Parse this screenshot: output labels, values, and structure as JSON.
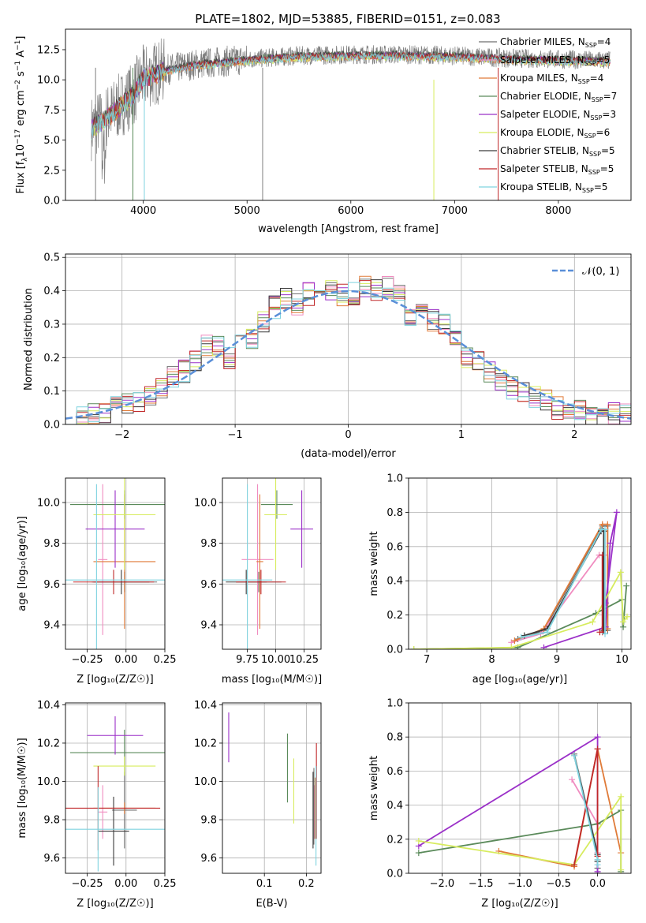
{
  "figure_title": "PLATE=1802, MJD=53885, FIBERID=0151, z=0.083",
  "colors": {
    "Chabrier MILES": "#6f6f6f",
    "Salpeter MILES": "#f08cc0",
    "Kroupa MILES": "#e07b39",
    "Chabrier ELODIE": "#5a8a5a",
    "Salpeter ELODIE": "#9b30c8",
    "Kroupa ELODIE": "#d7ec5e",
    "Chabrier STELIB": "#3a3a3a",
    "Salpeter STELIB": "#c0282a",
    "Kroupa STELIB": "#7fd3df",
    "normal": "#5a8fd8"
  },
  "chart_data": [
    {
      "id": "spectrum",
      "type": "line",
      "title": "PLATE=1802, MJD=53885, FIBERID=0151, z=0.083",
      "xlabel": "wavelength [Angstrom, rest frame]",
      "ylabel_main": "Flux [f",
      "ylabel_sub1": "λ",
      "ylabel_mid": "10",
      "ylabel_sup1": "−17",
      "ylabel_tail": " erg cm",
      "ylabel_sup2": "−2",
      "ylabel_tail2": " s",
      "ylabel_sup3": "−1",
      "ylabel_tail3": " A",
      "ylabel_sup4": "−1",
      "ylabel_end": "]",
      "xlim": [
        3250,
        8700
      ],
      "ylim": [
        0,
        14.2
      ],
      "xticks": [
        "4000",
        "5000",
        "6000",
        "7000",
        "8000"
      ],
      "yticks": [
        "0.0",
        "2.5",
        "5.0",
        "7.5",
        "10.0",
        "12.5"
      ],
      "legend_position": "upper-right",
      "legend": [
        {
          "name": "Chabrier MILES",
          "n": "4"
        },
        {
          "name": "Salpeter MILES",
          "n": "5"
        },
        {
          "name": "Kroupa MILES",
          "n": "4"
        },
        {
          "name": "Chabrier ELODIE",
          "n": "7"
        },
        {
          "name": "Salpeter ELODIE",
          "n": "3"
        },
        {
          "name": "Kroupa ELODIE",
          "n": "6"
        },
        {
          "name": "Chabrier STELIB",
          "n": "5"
        },
        {
          "name": "Salpeter STELIB",
          "n": "5"
        },
        {
          "name": "Kroupa STELIB",
          "n": "5"
        }
      ],
      "legend_sub": "SSP",
      "continuum": {
        "x": [
          3500,
          3700,
          3900,
          4000,
          4200,
          4500,
          5000,
          5500,
          6000,
          6500,
          7000,
          7500,
          8000,
          8500
        ],
        "y": [
          6.0,
          7.3,
          8.8,
          10.2,
          10.8,
          11.3,
          11.7,
          12.0,
          12.1,
          12.1,
          12.0,
          11.8,
          11.7,
          11.6
        ]
      }
    },
    {
      "id": "residuals",
      "type": "histogram",
      "xlabel": "(data-model)/error",
      "ylabel": "Normed distribution",
      "xlim": [
        -2.5,
        2.5
      ],
      "ylim": [
        0,
        0.51
      ],
      "xticks": [
        "−2",
        "−1",
        "0",
        "1",
        "2"
      ],
      "yticks": [
        "0.0",
        "0.1",
        "0.2",
        "0.3",
        "0.4",
        "0.5"
      ],
      "legend": "𝒩(0, 1)",
      "bin_width": 0.1,
      "bin_start": -2.5,
      "heights": [
        0.01,
        0.02,
        0.03,
        0.04,
        0.05,
        0.06,
        0.07,
        0.09,
        0.11,
        0.14,
        0.16,
        0.19,
        0.24,
        0.24,
        0.2,
        0.27,
        0.26,
        0.31,
        0.35,
        0.38,
        0.36,
        0.39,
        0.41,
        0.4,
        0.39,
        0.39,
        0.41,
        0.4,
        0.41,
        0.4,
        0.33,
        0.35,
        0.31,
        0.3,
        0.25,
        0.2,
        0.19,
        0.16,
        0.13,
        0.11,
        0.1,
        0.08,
        0.07,
        0.05,
        0.04,
        0.04,
        0.03,
        0.03,
        0.03,
        0.03
      ]
    },
    {
      "id": "age-vs-Z",
      "type": "errorbar",
      "xlabel": "Z [log₁₀(Z/Z☉)]",
      "ylabel": "age  [log₁₀(age/yr)]",
      "xlim": [
        -0.39,
        0.25
      ],
      "ylim": [
        9.28,
        10.12
      ],
      "xticks": [
        "−0.25",
        "0.00",
        "0.25"
      ],
      "yticks": [
        "9.4",
        "9.6",
        "9.8",
        "10.0"
      ],
      "points": [
        {
          "s": "Chabrier MILES",
          "x": -0.01,
          "xe": 0.21,
          "y": 9.61,
          "ye": 0.05
        },
        {
          "s": "Salpeter MILES",
          "x": -0.15,
          "xe": 0.03,
          "y": 9.72,
          "ye": 0.37
        },
        {
          "s": "Kroupa MILES",
          "x": -0.01,
          "xe": 0.2,
          "y": 9.71,
          "ye": 0.33
        },
        {
          "s": "Chabrier ELODIE",
          "x": -0.01,
          "xe": 0.35,
          "y": 9.99,
          "ye": 0.07
        },
        {
          "s": "Salpeter ELODIE",
          "x": -0.07,
          "xe": 0.19,
          "y": 9.87,
          "ye": 0.19
        },
        {
          "s": "Kroupa ELODIE",
          "x": -0.01,
          "xe": 0.2,
          "y": 9.94,
          "ye": 0.27
        },
        {
          "s": "Chabrier STELIB",
          "x": -0.03,
          "xe": 0.18,
          "y": 9.61,
          "ye": 0.06
        },
        {
          "s": "Salpeter STELIB",
          "x": -0.08,
          "xe": 0.26,
          "y": 9.61,
          "ye": 0.06
        },
        {
          "s": "Kroupa STELIB",
          "x": -0.19,
          "xe": 0.44,
          "y": 9.62,
          "ye": 0.47
        }
      ]
    },
    {
      "id": "age-vs-mass",
      "type": "errorbar",
      "xlabel": "mass [log₁₀(M/M☉)]",
      "xlim": [
        9.53,
        10.4
      ],
      "ylim": [
        9.28,
        10.12
      ],
      "xticks": [
        "9.75",
        "10.00",
        "10.25"
      ],
      "yticks": [
        "9.4",
        "9.6",
        "9.8",
        "10.0"
      ],
      "points": [
        {
          "s": "Chabrier MILES",
          "x": 9.85,
          "xe": 0.2,
          "y": 9.61,
          "ye": 0.05
        },
        {
          "s": "Salpeter MILES",
          "x": 9.84,
          "xe": 0.14,
          "y": 9.72,
          "ye": 0.37
        },
        {
          "s": "Kroupa MILES",
          "x": 9.86,
          "xe": 0.03,
          "y": 9.71,
          "ye": 0.33
        },
        {
          "s": "Chabrier ELODIE",
          "x": 10.01,
          "xe": 0.14,
          "y": 9.99,
          "ye": 0.07
        },
        {
          "s": "Salpeter ELODIE",
          "x": 10.23,
          "xe": 0.1,
          "y": 9.87,
          "ye": 0.19
        },
        {
          "s": "Kroupa ELODIE",
          "x": 10.0,
          "xe": 0.1,
          "y": 9.94,
          "ye": 0.27
        },
        {
          "s": "Chabrier STELIB",
          "x": 9.74,
          "xe": 0.18,
          "y": 9.61,
          "ye": 0.06
        },
        {
          "s": "Salpeter STELIB",
          "x": 9.87,
          "xe": 0.22,
          "y": 9.61,
          "ye": 0.06
        },
        {
          "s": "Kroupa STELIB",
          "x": 9.75,
          "xe": 0.22,
          "y": 9.62,
          "ye": 0.47
        }
      ]
    },
    {
      "id": "weight-vs-age",
      "type": "line",
      "xlabel": "age  [log₁₀(age/yr)]",
      "ylabel": "mass weight",
      "xlim": [
        6.72,
        10.14
      ],
      "ylim": [
        0,
        1.0
      ],
      "xticks": [
        "7",
        "8",
        "9",
        "10"
      ],
      "yticks": [
        "0.0",
        "0.2",
        "0.4",
        "0.6",
        "0.8",
        "1.0"
      ],
      "series": [
        {
          "s": "Chabrier MILES",
          "x": [
            8.4,
            8.8,
            9.7,
            9.78,
            9.78
          ],
          "y": [
            0.06,
            0.11,
            0.72,
            0.72,
            0.11
          ]
        },
        {
          "s": "Salpeter MILES",
          "x": [
            8.3,
            8.75,
            9.65,
            9.73,
            9.73
          ],
          "y": [
            0.04,
            0.09,
            0.55,
            0.55,
            0.13
          ]
        },
        {
          "s": "Kroupa MILES",
          "x": [
            8.35,
            8.8,
            9.7,
            9.78,
            9.78
          ],
          "y": [
            0.05,
            0.12,
            0.73,
            0.73,
            0.12
          ]
        },
        {
          "s": "Chabrier ELODIE",
          "x": [
            6.8,
            8.4,
            9.6,
            10.0,
            10.02,
            10.07
          ],
          "y": [
            0.0,
            0.01,
            0.21,
            0.29,
            0.13,
            0.37
          ]
        },
        {
          "s": "Salpeter ELODIE",
          "x": [
            8.8,
            9.75,
            9.82,
            9.92,
            9.75
          ],
          "y": [
            0.01,
            0.13,
            0.62,
            0.8,
            0.27
          ]
        },
        {
          "s": "Kroupa ELODIE",
          "x": [
            6.8,
            8.3,
            9.55,
            9.98,
            10.02,
            10.08
          ],
          "y": [
            0.0,
            0.01,
            0.16,
            0.45,
            0.16,
            0.19
          ]
        },
        {
          "s": "Chabrier STELIB",
          "x": [
            8.5,
            8.85,
            9.68,
            9.72,
            9.72
          ],
          "y": [
            0.08,
            0.12,
            0.69,
            0.69,
            0.11
          ]
        },
        {
          "s": "Salpeter STELIB",
          "x": [
            9.66,
            9.7,
            9.7
          ],
          "y": [
            0.1,
            0.1,
            0.55
          ]
        },
        {
          "s": "Kroupa STELIB",
          "x": [
            8.45,
            8.85,
            9.68,
            9.74,
            9.74
          ],
          "y": [
            0.07,
            0.1,
            0.7,
            0.7,
            0.09
          ]
        }
      ]
    },
    {
      "id": "mass-vs-Z",
      "type": "errorbar",
      "xlabel": "Z [log₁₀(Z/Z☉)]",
      "ylabel": "mass [log₁₀(M/M☉)]",
      "xlim": [
        -0.39,
        0.25
      ],
      "ylim": [
        9.52,
        10.41
      ],
      "xticks": [
        "−0.25",
        "0.00",
        "0.25"
      ],
      "yticks": [
        "9.6",
        "9.8",
        "10.0",
        "10.2",
        "10.4"
      ],
      "points": [
        {
          "s": "Chabrier MILES",
          "x": -0.01,
          "xe": 0.08,
          "y": 9.85,
          "ye": 0.2
        },
        {
          "s": "Salpeter MILES",
          "x": -0.15,
          "xe": 0.03,
          "y": 9.84,
          "ye": 0.14
        },
        {
          "s": "Kroupa MILES",
          "x": -0.01,
          "xe": 0.2,
          "y": 9.86,
          "ye": 0.03
        },
        {
          "s": "Chabrier ELODIE",
          "x": -0.01,
          "xe": 0.35,
          "y": 10.15,
          "ye": 0.12
        },
        {
          "s": "Salpeter ELODIE",
          "x": -0.07,
          "xe": 0.18,
          "y": 10.24,
          "ye": 0.1
        },
        {
          "s": "Kroupa ELODIE",
          "x": -0.01,
          "xe": 0.2,
          "y": 10.08,
          "ye": 0.05
        },
        {
          "s": "Chabrier STELIB",
          "x": -0.08,
          "xe": 0.1,
          "y": 9.74,
          "ye": 0.18
        },
        {
          "s": "Salpeter STELIB",
          "x": -0.18,
          "xe": 0.4,
          "y": 9.86,
          "ye": 0.22
        },
        {
          "s": "Kroupa STELIB",
          "x": -0.18,
          "xe": 0.43,
          "y": 9.75,
          "ye": 0.22
        }
      ]
    },
    {
      "id": "mass-vs-ebv",
      "type": "errorbar",
      "xlabel": "E(B-V)",
      "xlim": [
        0.0,
        0.235
      ],
      "ylim": [
        9.52,
        10.41
      ],
      "xticks": [
        "0.1",
        "0.2"
      ],
      "yticks": [
        "9.6",
        "9.8",
        "10.0",
        "10.2",
        "10.4"
      ],
      "points": [
        {
          "s": "Chabrier MILES",
          "x": 0.218,
          "xe": 0,
          "y": 9.87,
          "ye": 0.2
        },
        {
          "s": "Salpeter MILES",
          "x": 0.22,
          "xe": 0,
          "y": 9.84,
          "ye": 0.14
        },
        {
          "s": "Kroupa MILES",
          "x": 0.221,
          "xe": 0,
          "y": 9.86,
          "ye": 0.16
        },
        {
          "s": "Chabrier ELODIE",
          "x": 0.155,
          "xe": 0,
          "y": 10.07,
          "ye": 0.18
        },
        {
          "s": "Salpeter ELODIE",
          "x": 0.015,
          "xe": 0,
          "y": 10.23,
          "ye": 0.13
        },
        {
          "s": "Kroupa ELODIE",
          "x": 0.17,
          "xe": 0,
          "y": 9.95,
          "ye": 0.17
        },
        {
          "s": "Chabrier STELIB",
          "x": 0.216,
          "xe": 0,
          "y": 9.85,
          "ye": 0.2
        },
        {
          "s": "Salpeter STELIB",
          "x": 0.224,
          "xe": 0,
          "y": 9.95,
          "ye": 0.25
        },
        {
          "s": "Kroupa STELIB",
          "x": 0.223,
          "xe": 0,
          "y": 9.82,
          "ye": 0.26
        }
      ]
    },
    {
      "id": "weight-vs-Z",
      "type": "line",
      "xlabel": "Z [log₁₀(Z/Z☉)]",
      "ylabel": "mass weight",
      "xlim": [
        -2.43,
        0.43
      ],
      "ylim": [
        0,
        1.0
      ],
      "xticks": [
        "−2.0",
        "−1.5",
        "−1.0",
        "−0.5",
        "0.0"
      ],
      "yticks": [
        "0.0",
        "0.2",
        "0.4",
        "0.6",
        "0.8",
        "1.0"
      ],
      "series": [
        {
          "s": "Chabrier MILES",
          "x": [
            -0.3,
            0.0,
            0.0,
            0.0
          ],
          "y": [
            0.7,
            0.12,
            0.03,
            0.0
          ]
        },
        {
          "s": "Salpeter MILES",
          "x": [
            -0.33,
            0.0,
            0.0
          ],
          "y": [
            0.55,
            0.29,
            0.12
          ]
        },
        {
          "s": "Kroupa MILES",
          "x": [
            -1.27,
            -0.3,
            0.0,
            0.3
          ],
          "y": [
            0.13,
            0.04,
            0.73,
            0.12
          ]
        },
        {
          "s": "Chabrier ELODIE",
          "x": [
            -2.3,
            0.0,
            0.3,
            0.3
          ],
          "y": [
            0.12,
            0.29,
            0.37,
            0.01
          ]
        },
        {
          "s": "Salpeter ELODIE",
          "x": [
            -2.3,
            0.0,
            0.0
          ],
          "y": [
            0.16,
            0.8,
            0.01
          ]
        },
        {
          "s": "Kroupa ELODIE",
          "x": [
            -2.3,
            -0.3,
            0.3,
            0.3
          ],
          "y": [
            0.19,
            0.05,
            0.45,
            0.02
          ]
        },
        {
          "s": "Chabrier STELIB",
          "x": [
            -0.3,
            0.0,
            0.0
          ],
          "y": [
            0.69,
            0.11,
            0.07
          ]
        },
        {
          "s": "Salpeter STELIB",
          "x": [
            -0.3,
            0.0,
            0.0
          ],
          "y": [
            0.05,
            0.73,
            0.1
          ]
        },
        {
          "s": "Kroupa STELIB",
          "x": [
            -0.3,
            0.0,
            0.0
          ],
          "y": [
            0.69,
            0.08,
            0.05
          ]
        }
      ]
    }
  ]
}
